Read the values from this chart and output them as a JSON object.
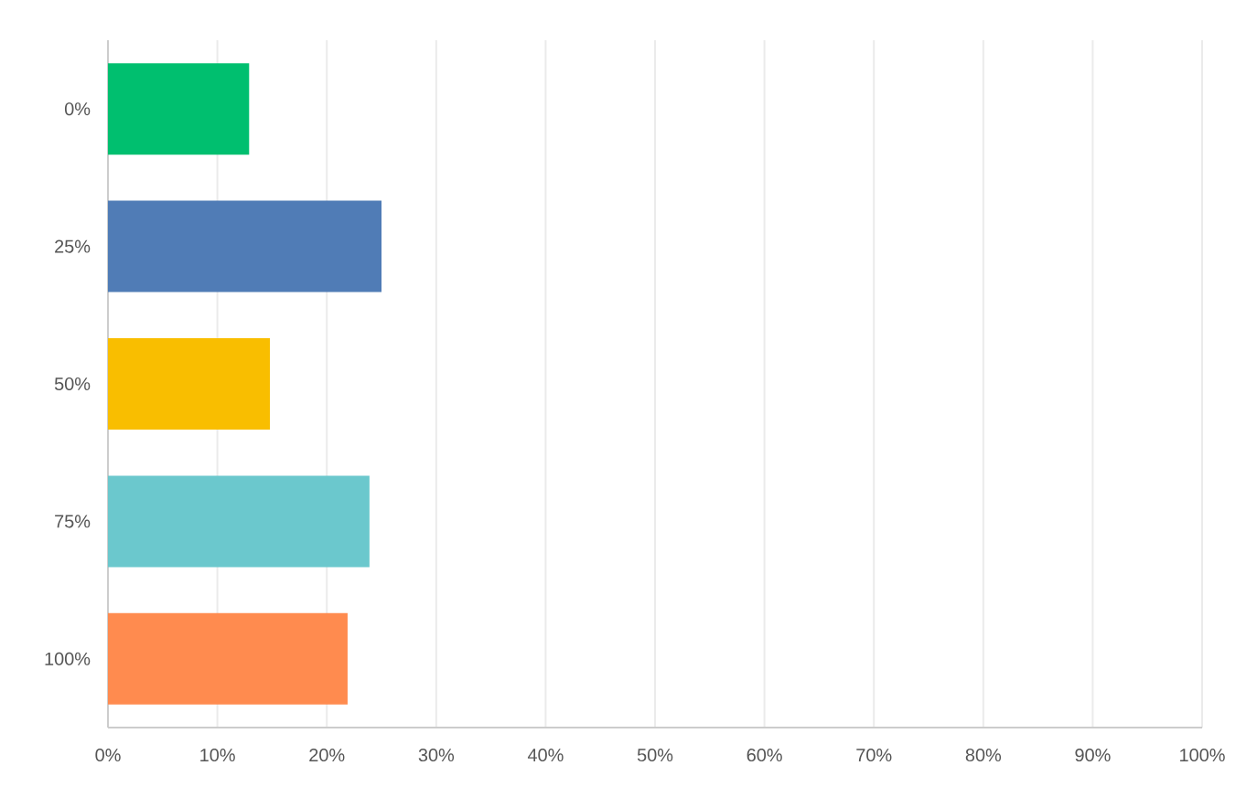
{
  "chart_data": {
    "type": "bar",
    "orientation": "horizontal",
    "categories": [
      "0%",
      "25%",
      "50%",
      "75%",
      "100%"
    ],
    "values": [
      12.9,
      25.0,
      14.8,
      23.9,
      21.9
    ],
    "colors": [
      "#00bf6f",
      "#507cb6",
      "#f9be00",
      "#6bc8cd",
      "#ff8b4f"
    ],
    "xlim": [
      0,
      100
    ],
    "xticks": [
      {
        "value": 0,
        "label": "0%"
      },
      {
        "value": 10,
        "label": "10%"
      },
      {
        "value": 20,
        "label": "20%"
      },
      {
        "value": 30,
        "label": "30%"
      },
      {
        "value": 40,
        "label": "40%"
      },
      {
        "value": 50,
        "label": "50%"
      },
      {
        "value": 60,
        "label": "60%"
      },
      {
        "value": 70,
        "label": "70%"
      },
      {
        "value": 80,
        "label": "80%"
      },
      {
        "value": 90,
        "label": "90%"
      },
      {
        "value": 100,
        "label": "100%"
      }
    ],
    "grid": "x"
  }
}
